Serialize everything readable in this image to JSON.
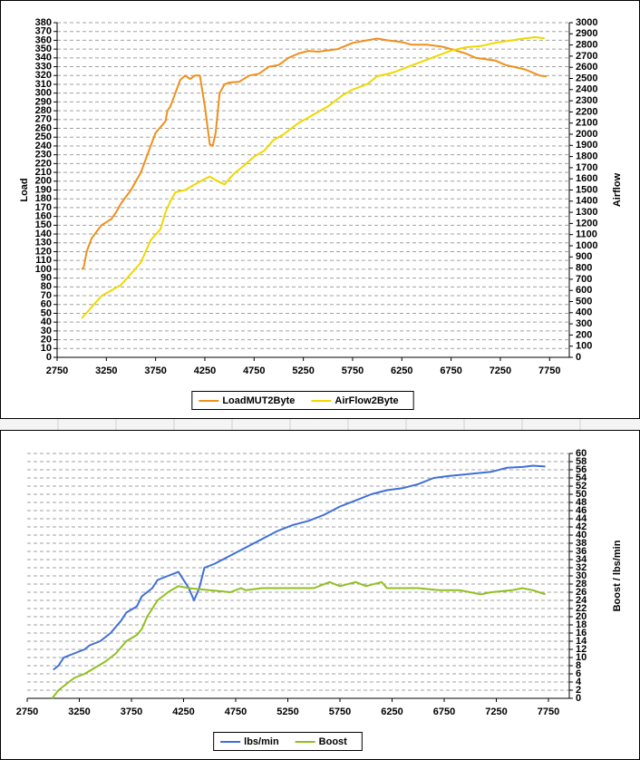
{
  "chart_data": [
    {
      "type": "line",
      "ylabel": "Load",
      "y2label": "Airflow",
      "xlim": [
        2750,
        7950
      ],
      "xticks": [
        2750,
        3250,
        3750,
        4250,
        4750,
        5250,
        5750,
        6250,
        6750,
        7250,
        7750
      ],
      "ylim": [
        0,
        380
      ],
      "yticks": [
        0,
        10,
        20,
        30,
        40,
        50,
        60,
        70,
        80,
        90,
        100,
        110,
        120,
        130,
        140,
        150,
        160,
        170,
        180,
        190,
        200,
        210,
        220,
        230,
        240,
        250,
        260,
        270,
        280,
        290,
        300,
        310,
        320,
        330,
        340,
        350,
        360,
        370,
        380
      ],
      "y2lim": [
        0,
        3000
      ],
      "y2ticks": [
        0,
        100,
        200,
        300,
        400,
        500,
        600,
        700,
        800,
        900,
        1000,
        1100,
        1200,
        1300,
        1400,
        1500,
        1600,
        1700,
        1800,
        1900,
        2000,
        2100,
        2200,
        2300,
        2400,
        2500,
        2600,
        2700,
        2800,
        2900,
        3000
      ],
      "grid": true,
      "legend": "bottom",
      "series": [
        {
          "name": "LoadMUT2Byte",
          "color": "#f0901c",
          "x": [
            3000,
            3020,
            3050,
            3100,
            3200,
            3300,
            3350,
            3400,
            3500,
            3600,
            3700,
            3750,
            3850,
            3870,
            3900,
            3950,
            4000,
            4050,
            4100,
            4150,
            4200,
            4250,
            4300,
            4330,
            4360,
            4400,
            4450,
            4500,
            4600,
            4700,
            4800,
            4900,
            5000,
            5100,
            5200,
            5300,
            5400,
            5600,
            5750,
            5900,
            6000,
            6100,
            6250,
            6350,
            6500,
            6650,
            6750,
            6900,
            7000,
            7200,
            7300,
            7500,
            7650,
            7720
          ],
          "values": [
            100,
            102,
            120,
            135,
            150,
            157,
            165,
            175,
            190,
            210,
            240,
            255,
            268,
            280,
            285,
            300,
            315,
            320,
            316,
            320,
            320,
            285,
            242,
            240,
            255,
            300,
            310,
            312,
            313,
            320,
            322,
            330,
            332,
            340,
            345,
            348,
            347,
            350,
            357,
            360,
            362,
            360,
            358,
            355,
            355,
            353,
            350,
            345,
            340,
            337,
            332,
            327,
            320,
            319
          ]
        },
        {
          "name": "AirFlow2Byte",
          "color": "#f0d800",
          "x": [
            3000,
            3100,
            3200,
            3300,
            3400,
            3500,
            3600,
            3700,
            3750,
            3800,
            3850,
            3900,
            3950,
            4050,
            4150,
            4250,
            4300,
            4400,
            4450,
            4550,
            4650,
            4750,
            4850,
            4950,
            5050,
            5200,
            5300,
            5400,
            5500,
            5650,
            5750,
            5900,
            6000,
            6150,
            6300,
            6450,
            6600,
            6750,
            6900,
            7050,
            7200,
            7350,
            7500,
            7600,
            7700
          ],
          "values": [
            350,
            450,
            550,
            600,
            650,
            750,
            850,
            1050,
            1100,
            1150,
            1300,
            1400,
            1480,
            1500,
            1550,
            1600,
            1620,
            1570,
            1550,
            1650,
            1720,
            1800,
            1850,
            1950,
            2000,
            2100,
            2150,
            2200,
            2250,
            2350,
            2400,
            2450,
            2520,
            2550,
            2600,
            2650,
            2700,
            2750,
            2780,
            2790,
            2820,
            2840,
            2860,
            2870,
            2860
          ],
          "axis": "y2"
        }
      ]
    },
    {
      "type": "line",
      "y2label": "Boost / lbs/min",
      "xlim": [
        2750,
        7950
      ],
      "xticks": [
        2750,
        3250,
        3750,
        4250,
        4750,
        5250,
        5750,
        6250,
        6750,
        7250,
        7750
      ],
      "y2lim": [
        0,
        60
      ],
      "y2ticks": [
        0,
        2,
        4,
        6,
        8,
        10,
        12,
        14,
        16,
        18,
        20,
        22,
        24,
        26,
        28,
        30,
        32,
        34,
        36,
        38,
        40,
        42,
        44,
        46,
        48,
        50,
        52,
        54,
        56,
        58,
        60
      ],
      "grid": true,
      "legend": "bottom",
      "series": [
        {
          "name": "lbs/min",
          "color": "#3f6fd8",
          "x": [
            3000,
            3050,
            3100,
            3200,
            3300,
            3350,
            3450,
            3550,
            3650,
            3700,
            3800,
            3850,
            3950,
            4000,
            4100,
            4150,
            4200,
            4300,
            4350,
            4400,
            4450,
            4550,
            4700,
            4850,
            5000,
            5150,
            5300,
            5450,
            5600,
            5750,
            5900,
            6050,
            6200,
            6350,
            6500,
            6650,
            6800,
            7000,
            7200,
            7350,
            7500,
            7600,
            7720
          ],
          "values": [
            7,
            8,
            10,
            11,
            12,
            13,
            14,
            16,
            19,
            21,
            22.5,
            25,
            27,
            29,
            30,
            30.5,
            31,
            27,
            24,
            27,
            32,
            33,
            35,
            37,
            39,
            41,
            42.5,
            43.5,
            45,
            47,
            48.5,
            50,
            51,
            51.5,
            52.5,
            54,
            54.5,
            55,
            55.5,
            56.5,
            56.7,
            57,
            56.8
          ],
          "axis": "y2"
        },
        {
          "name": "Boost",
          "color": "#90c020",
          "x": [
            2990,
            3050,
            3100,
            3200,
            3300,
            3400,
            3500,
            3600,
            3700,
            3800,
            3850,
            3900,
            4000,
            4100,
            4200,
            4300,
            4500,
            4700,
            4800,
            4850,
            5000,
            5200,
            5500,
            5650,
            5750,
            5900,
            6000,
            6150,
            6200,
            6500,
            6700,
            6900,
            7100,
            7200,
            7400,
            7500,
            7600,
            7720
          ],
          "values": [
            0,
            2,
            3,
            5,
            6,
            7.5,
            9,
            11,
            14,
            15.5,
            17,
            20,
            24,
            26,
            27.5,
            27,
            26.5,
            26,
            27,
            26.5,
            27,
            27,
            27,
            28.5,
            27.5,
            28.5,
            27.5,
            28.5,
            27,
            27,
            26.5,
            26.5,
            25.5,
            26,
            26.5,
            27,
            26.5,
            25.5
          ],
          "axis": "y2"
        }
      ]
    }
  ]
}
